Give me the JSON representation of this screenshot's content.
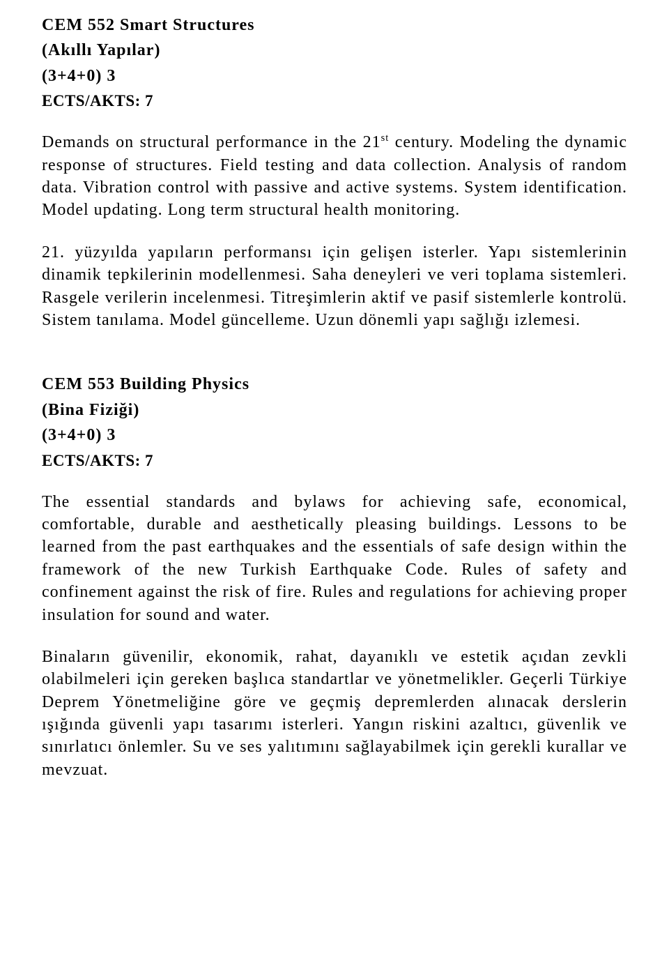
{
  "courses": [
    {
      "title": "CEM 552 Smart Structures",
      "subtitle": "(Akıllı Yapılar)",
      "credits": "(3+4+0) 3",
      "ects": "ECTS/AKTS: 7",
      "desc_en_pre": "Demands on structural performance in the 21",
      "desc_en_sup": "st",
      "desc_en_post": " century. Modeling the dynamic response of structures. Field testing and data collection. Analysis of random data. Vibration control with passive and active systems. System identification. Model updating. Long term structural health monitoring.",
      "desc_tr": "21. yüzyılda yapıların performansı için gelişen isterler. Yapı sistemlerinin dinamik tepkilerinin modellenmesi. Saha deneyleri ve veri toplama sistemleri. Rasgele verilerin incelenmesi. Titreşimlerin aktif ve pasif sistemlerle kontrolü. Sistem tanılama. Model güncelleme. Uzun dönemli yapı sağlığı izlemesi."
    },
    {
      "title": "CEM 553 Building Physics",
      "subtitle": "(Bina Fiziği)",
      "credits": "(3+4+0) 3",
      "ects": "ECTS/AKTS: 7",
      "desc_en": "The essential standards and bylaws for achieving safe, economical, comfortable, durable and aesthetically pleasing buildings. Lessons to be learned from the past earthquakes and the essentials of safe design within the framework of the new Turkish Earthquake Code. Rules of safety and confinement against the risk of fire. Rules and regulations for achieving proper insulation for sound and water.",
      "desc_tr": "Binaların güvenilir, ekonomik, rahat, dayanıklı ve  estetik açıdan zevkli olabilmeleri için gereken başlıca standartlar ve yönetmelikler. Geçerli Türkiye Deprem Yönetmeliğine göre ve geçmiş depremlerden alınacak derslerin ışığında güvenli yapı tasarımı isterleri. Yangın riskini azaltıcı, güvenlik ve sınırlatıcı önlemler. Su ve ses yalıtımını sağlayabilmek için gerekli kurallar ve mevzuat."
    }
  ]
}
